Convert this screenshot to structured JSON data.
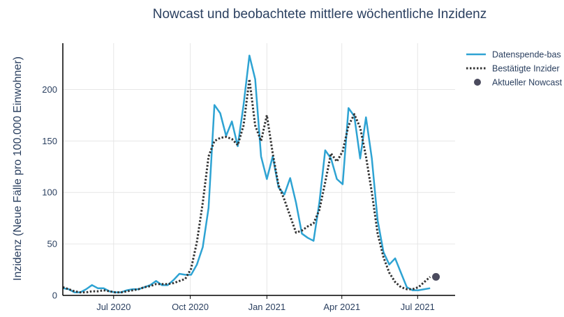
{
  "chart_data": {
    "type": "line",
    "title": "Nowcast und beobachtete mittlere wöchentliche Inzidenz",
    "xlabel": "",
    "ylabel": "Inzidenz (Neue Fälle pro 100.000 Einwohner)",
    "x_ticks": [
      {
        "date": "2020-07-01",
        "label": "Jul 2020"
      },
      {
        "date": "2020-10-01",
        "label": "Oct 2020"
      },
      {
        "date": "2021-01-01",
        "label": "Jan 2021"
      },
      {
        "date": "2021-04-01",
        "label": "Apr 2021"
      },
      {
        "date": "2021-07-01",
        "label": "Jul 2021"
      }
    ],
    "xlim": [
      "2020-05-01",
      "2021-08-15"
    ],
    "ylim": [
      0,
      245
    ],
    "y_ticks": [
      0,
      50,
      100,
      150,
      200
    ],
    "grid": true,
    "legend_position": "top-right",
    "series": [
      {
        "name": "Datenspende-bas",
        "style": "solid",
        "color": "#2ea3d3",
        "points": [
          [
            "2020-05-01",
            7
          ],
          [
            "2020-05-08",
            6
          ],
          [
            "2020-05-15",
            3
          ],
          [
            "2020-05-22",
            3
          ],
          [
            "2020-05-29",
            6
          ],
          [
            "2020-06-05",
            10
          ],
          [
            "2020-06-12",
            7
          ],
          [
            "2020-06-19",
            7
          ],
          [
            "2020-06-26",
            4
          ],
          [
            "2020-07-03",
            3
          ],
          [
            "2020-07-10",
            3
          ],
          [
            "2020-07-17",
            5
          ],
          [
            "2020-07-24",
            6
          ],
          [
            "2020-07-31",
            6
          ],
          [
            "2020-08-07",
            8
          ],
          [
            "2020-08-14",
            10
          ],
          [
            "2020-08-21",
            14
          ],
          [
            "2020-08-28",
            10
          ],
          [
            "2020-09-04",
            10
          ],
          [
            "2020-09-11",
            15
          ],
          [
            "2020-09-18",
            21
          ],
          [
            "2020-09-25",
            20
          ],
          [
            "2020-10-02",
            20
          ],
          [
            "2020-10-09",
            30
          ],
          [
            "2020-10-16",
            47
          ],
          [
            "2020-10-23",
            85
          ],
          [
            "2020-10-30",
            185
          ],
          [
            "2020-11-06",
            177
          ],
          [
            "2020-11-13",
            155
          ],
          [
            "2020-11-20",
            169
          ],
          [
            "2020-11-27",
            145
          ],
          [
            "2020-12-04",
            185
          ],
          [
            "2020-12-11",
            233
          ],
          [
            "2020-12-18",
            210
          ],
          [
            "2020-12-25",
            135
          ],
          [
            "2021-01-01",
            113
          ],
          [
            "2021-01-08",
            135
          ],
          [
            "2021-01-15",
            105
          ],
          [
            "2021-01-22",
            98
          ],
          [
            "2021-01-29",
            114
          ],
          [
            "2021-02-05",
            90
          ],
          [
            "2021-02-12",
            60
          ],
          [
            "2021-02-19",
            56
          ],
          [
            "2021-02-26",
            53
          ],
          [
            "2021-03-05",
            90
          ],
          [
            "2021-03-12",
            141
          ],
          [
            "2021-03-19",
            133
          ],
          [
            "2021-03-26",
            113
          ],
          [
            "2021-04-02",
            108
          ],
          [
            "2021-04-09",
            182
          ],
          [
            "2021-04-16",
            174
          ],
          [
            "2021-04-23",
            133
          ],
          [
            "2021-04-30",
            173
          ],
          [
            "2021-05-07",
            133
          ],
          [
            "2021-05-14",
            73
          ],
          [
            "2021-05-21",
            42
          ],
          [
            "2021-05-28",
            30
          ],
          [
            "2021-06-04",
            36
          ],
          [
            "2021-06-11",
            22
          ],
          [
            "2021-06-18",
            8
          ],
          [
            "2021-06-25",
            5
          ],
          [
            "2021-07-02",
            5
          ],
          [
            "2021-07-09",
            6
          ],
          [
            "2021-07-16",
            7
          ]
        ]
      },
      {
        "name": "Bestätigte Inzider",
        "style": "dotted",
        "color": "#333333",
        "points": [
          [
            "2020-05-01",
            8
          ],
          [
            "2020-05-08",
            6
          ],
          [
            "2020-05-15",
            4
          ],
          [
            "2020-05-22",
            3
          ],
          [
            "2020-05-29",
            3
          ],
          [
            "2020-06-05",
            4
          ],
          [
            "2020-06-12",
            4
          ],
          [
            "2020-06-19",
            5
          ],
          [
            "2020-06-26",
            4
          ],
          [
            "2020-07-03",
            3
          ],
          [
            "2020-07-10",
            3
          ],
          [
            "2020-07-17",
            4
          ],
          [
            "2020-07-24",
            5
          ],
          [
            "2020-07-31",
            6
          ],
          [
            "2020-08-07",
            8
          ],
          [
            "2020-08-14",
            9
          ],
          [
            "2020-08-21",
            11
          ],
          [
            "2020-08-28",
            11
          ],
          [
            "2020-09-04",
            11
          ],
          [
            "2020-09-11",
            12
          ],
          [
            "2020-09-18",
            14
          ],
          [
            "2020-09-25",
            16
          ],
          [
            "2020-10-02",
            26
          ],
          [
            "2020-10-09",
            52
          ],
          [
            "2020-10-16",
            90
          ],
          [
            "2020-10-23",
            135
          ],
          [
            "2020-10-30",
            150
          ],
          [
            "2020-11-06",
            153
          ],
          [
            "2020-11-13",
            154
          ],
          [
            "2020-11-20",
            152
          ],
          [
            "2020-11-27",
            146
          ],
          [
            "2020-12-04",
            165
          ],
          [
            "2020-12-11",
            210
          ],
          [
            "2020-12-18",
            165
          ],
          [
            "2020-12-25",
            150
          ],
          [
            "2021-01-01",
            175
          ],
          [
            "2021-01-08",
            138
          ],
          [
            "2021-01-15",
            107
          ],
          [
            "2021-01-22",
            93
          ],
          [
            "2021-01-29",
            77
          ],
          [
            "2021-02-05",
            61
          ],
          [
            "2021-02-12",
            63
          ],
          [
            "2021-02-19",
            67
          ],
          [
            "2021-02-26",
            70
          ],
          [
            "2021-03-05",
            83
          ],
          [
            "2021-03-12",
            110
          ],
          [
            "2021-03-19",
            138
          ],
          [
            "2021-03-26",
            130
          ],
          [
            "2021-04-02",
            140
          ],
          [
            "2021-04-09",
            165
          ],
          [
            "2021-04-16",
            176
          ],
          [
            "2021-04-23",
            163
          ],
          [
            "2021-04-30",
            135
          ],
          [
            "2021-05-07",
            100
          ],
          [
            "2021-05-14",
            60
          ],
          [
            "2021-05-21",
            37
          ],
          [
            "2021-05-28",
            22
          ],
          [
            "2021-06-04",
            13
          ],
          [
            "2021-06-11",
            8
          ],
          [
            "2021-06-18",
            6
          ],
          [
            "2021-06-25",
            6
          ],
          [
            "2021-07-02",
            8
          ],
          [
            "2021-07-09",
            13
          ],
          [
            "2021-07-16",
            18
          ]
        ]
      }
    ],
    "nowcast": {
      "name": "Aktueller Nowcast",
      "date": "2021-07-23",
      "value": 18,
      "color": "#4b4b5e"
    }
  }
}
